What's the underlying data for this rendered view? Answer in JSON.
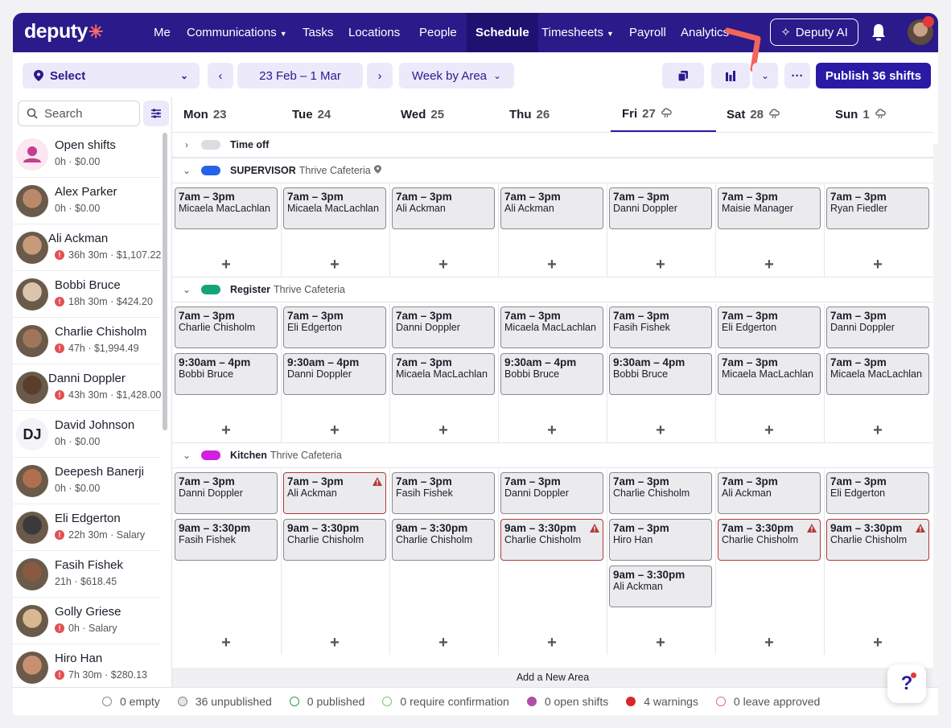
{
  "app": {
    "logo": "deputy"
  },
  "nav": {
    "me": "Me",
    "communications": "Communications",
    "tasks": "Tasks",
    "locations": "Locations",
    "people": "People",
    "schedule": "Schedule",
    "timesheets": "Timesheets",
    "payroll": "Payroll",
    "analytics": "Analytics",
    "ai": "Deputy AI"
  },
  "toolbar": {
    "location_select": "Select",
    "date_range": "23 Feb – 1 Mar",
    "view": "Week by Area",
    "publish": "Publish 36 shifts"
  },
  "search": {
    "placeholder": "Search"
  },
  "employees": [
    {
      "name": "Open shifts",
      "stat": "0h · $0.00",
      "warn": false
    },
    {
      "name": "Alex Parker",
      "stat": "0h · $0.00",
      "warn": false
    },
    {
      "name": "Ali Ackman",
      "stat": "36h 30m · $1,107.22",
      "warn": true
    },
    {
      "name": "Bobbi Bruce",
      "stat": "18h 30m · $424.20",
      "warn": true
    },
    {
      "name": "Charlie Chisholm",
      "stat": "47h · $1,994.49",
      "warn": true
    },
    {
      "name": "Danni Doppler",
      "stat": "43h 30m · $1,428.00",
      "warn": true
    },
    {
      "name": "David Johnson",
      "stat": "0h · $0.00",
      "warn": false,
      "initials": "DJ"
    },
    {
      "name": "Deepesh Banerji",
      "stat": "0h · $0.00",
      "warn": false
    },
    {
      "name": "Eli Edgerton",
      "stat": "22h 30m · Salary",
      "warn": true
    },
    {
      "name": "Fasih Fishek",
      "stat": "21h · $618.45",
      "warn": false
    },
    {
      "name": "Golly Griese",
      "stat": "0h · Salary",
      "warn": true
    },
    {
      "name": "Hiro Han",
      "stat": "7h 30m · $280.13",
      "warn": true
    }
  ],
  "days": [
    {
      "name": "Mon",
      "num": "23"
    },
    {
      "name": "Tue",
      "num": "24"
    },
    {
      "name": "Wed",
      "num": "25"
    },
    {
      "name": "Thu",
      "num": "26"
    },
    {
      "name": "Fri",
      "num": "27"
    },
    {
      "name": "Sat",
      "num": "28"
    },
    {
      "name": "Sun",
      "num": "1"
    }
  ],
  "sections": [
    {
      "title": "Time off",
      "sub": "",
      "color": "#dcdce2"
    },
    {
      "title": "SUPERVISOR",
      "sub": "Thrive Cafeteria",
      "color": "#2563eb"
    },
    {
      "title": "Register",
      "sub": "Thrive Cafeteria",
      "color": "#16a37a"
    },
    {
      "title": "Kitchen",
      "sub": "Thrive Cafeteria",
      "color": "#d21fe0"
    }
  ],
  "shifts": {
    "supervisor": [
      [
        {
          "t": "7am – 3pm",
          "n": "Micaela MacLachlan"
        }
      ],
      [
        {
          "t": "7am – 3pm",
          "n": "Micaela MacLachlan"
        }
      ],
      [
        {
          "t": "7am – 3pm",
          "n": "Ali Ackman"
        }
      ],
      [
        {
          "t": "7am – 3pm",
          "n": "Ali Ackman"
        }
      ],
      [
        {
          "t": "7am – 3pm",
          "n": "Danni Doppler"
        }
      ],
      [
        {
          "t": "7am – 3pm",
          "n": "Maisie Manager"
        }
      ],
      [
        {
          "t": "7am – 3pm",
          "n": "Ryan Fiedler"
        }
      ]
    ],
    "register": [
      [
        {
          "t": "7am – 3pm",
          "n": "Charlie Chisholm"
        },
        {
          "t": "9:30am – 4pm",
          "n": "Bobbi Bruce"
        }
      ],
      [
        {
          "t": "7am – 3pm",
          "n": "Eli Edgerton"
        },
        {
          "t": "9:30am – 4pm",
          "n": "Danni Doppler"
        }
      ],
      [
        {
          "t": "7am – 3pm",
          "n": "Danni Doppler"
        },
        {
          "t": "7am – 3pm",
          "n": "Micaela MacLachlan"
        }
      ],
      [
        {
          "t": "7am – 3pm",
          "n": "Micaela MacLachlan"
        },
        {
          "t": "9:30am – 4pm",
          "n": "Bobbi Bruce"
        }
      ],
      [
        {
          "t": "7am – 3pm",
          "n": "Fasih Fishek"
        },
        {
          "t": "9:30am – 4pm",
          "n": "Bobbi Bruce"
        }
      ],
      [
        {
          "t": "7am – 3pm",
          "n": "Eli Edgerton"
        },
        {
          "t": "7am – 3pm",
          "n": "Micaela MacLachlan"
        }
      ],
      [
        {
          "t": "7am – 3pm",
          "n": "Danni Doppler"
        },
        {
          "t": "7am – 3pm",
          "n": "Micaela MacLachlan"
        }
      ]
    ],
    "kitchen": [
      [
        {
          "t": "7am – 3pm",
          "n": "Danni Doppler"
        },
        {
          "t": "9am – 3:30pm",
          "n": "Fasih Fishek"
        }
      ],
      [
        {
          "t": "7am – 3pm",
          "n": "Ali Ackman",
          "warn": true
        },
        {
          "t": "9am – 3:30pm",
          "n": "Charlie Chisholm"
        }
      ],
      [
        {
          "t": "7am – 3pm",
          "n": "Fasih Fishek"
        },
        {
          "t": "9am – 3:30pm",
          "n": "Charlie Chisholm"
        }
      ],
      [
        {
          "t": "7am – 3pm",
          "n": "Danni Doppler"
        },
        {
          "t": "9am – 3:30pm",
          "n": "Charlie Chisholm",
          "warn": true
        }
      ],
      [
        {
          "t": "7am – 3pm",
          "n": "Charlie Chisholm"
        },
        {
          "t": "7am – 3pm",
          "n": "Hiro Han"
        },
        {
          "t": "9am – 3:30pm",
          "n": "Ali Ackman"
        }
      ],
      [
        {
          "t": "7am – 3pm",
          "n": "Ali Ackman"
        },
        {
          "t": "7am – 3:30pm",
          "n": "Charlie Chisholm",
          "warn": true
        }
      ],
      [
        {
          "t": "7am – 3pm",
          "n": "Eli Edgerton"
        },
        {
          "t": "9am – 3:30pm",
          "n": "Charlie Chisholm",
          "warn": true
        }
      ]
    ]
  },
  "add_area": "Add a New Area",
  "legend": [
    {
      "label": "0 empty",
      "fill": "#ffffff",
      "border": "#888888"
    },
    {
      "label": "36 unpublished",
      "fill": "#e4e4e8",
      "border": "#888888"
    },
    {
      "label": "0 published",
      "fill": "#ffffff",
      "border": "#2e9e44"
    },
    {
      "label": "0 require confirmation",
      "fill": "#ffffff",
      "border": "#7cc46e"
    },
    {
      "label": "0 open shifts",
      "fill": "#b14fa6",
      "border": "#b14fa6"
    },
    {
      "label": "4 warnings",
      "fill": "#d62828",
      "border": "#d62828"
    },
    {
      "label": "0 leave approved",
      "fill": "#ffffff",
      "border": "#e07070"
    }
  ],
  "help": {
    "label": "?"
  }
}
